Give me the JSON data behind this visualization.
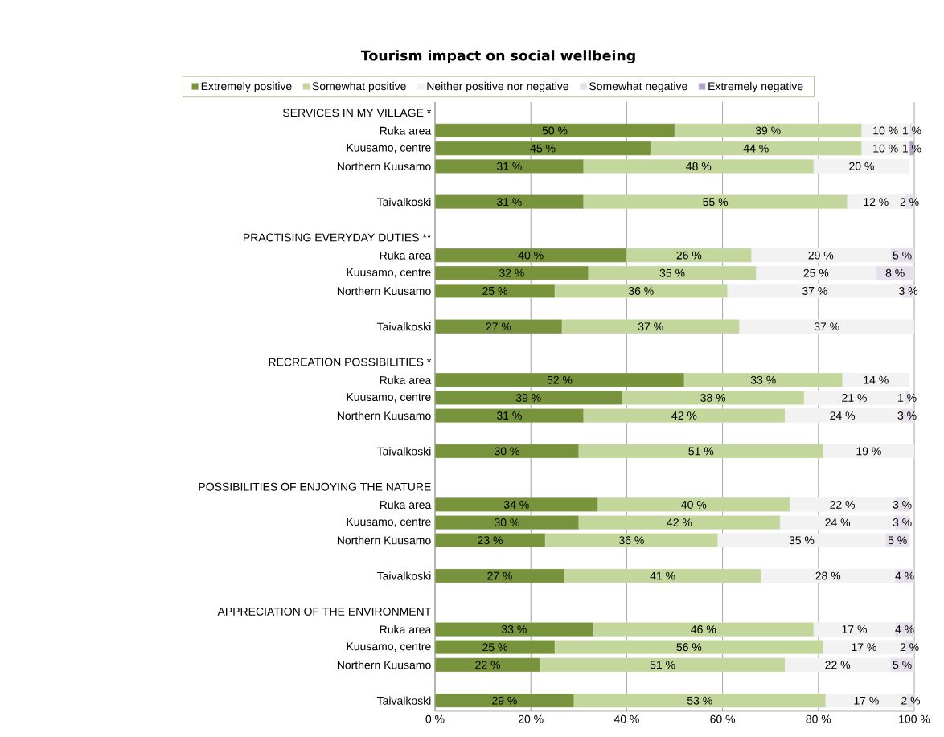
{
  "chart_data": {
    "type": "bar",
    "orientation": "horizontal",
    "stacked": true,
    "title": "Tourism impact on social wellbeing",
    "categories": [
      "SERVICES IN MY VILLAGE *",
      "Ruka area",
      "Kuusamo, centre",
      "Northern Kuusamo",
      null,
      "Taivalkoski",
      null,
      "PRACTISING EVERYDAY DUTIES **",
      "Ruka area",
      "Kuusamo, centre",
      "Northern Kuusamo",
      null,
      "Taivalkoski",
      null,
      "RECREATION POSSIBILITIES *",
      "Ruka area",
      "Kuusamo, centre",
      "Northern Kuusamo",
      null,
      "Taivalkoski",
      null,
      "POSSIBILITIES OF ENJOYING THE NATURE",
      "Ruka area",
      "Kuusamo, centre",
      "Northern Kuusamo",
      null,
      "Taivalkoski",
      null,
      "APPRECIATION OF THE ENVIRONMENT",
      "Ruka area",
      "Kuusamo, centre",
      "Northern Kuusamo",
      null,
      "Taivalkoski"
    ],
    "series": [
      {
        "name": "Extremely positive",
        "color": "#77933c",
        "values": [
          null,
          50,
          45,
          31,
          null,
          31,
          null,
          null,
          40,
          32,
          25,
          null,
          26.5,
          null,
          null,
          52,
          39,
          31,
          null,
          30,
          null,
          null,
          34,
          30,
          23,
          null,
          27,
          null,
          null,
          33,
          25,
          22,
          null,
          29
        ],
        "value_labels": [
          null,
          "50 %",
          "45 %",
          "31 %",
          null,
          "31 %",
          null,
          null,
          "40 %",
          "32 %",
          "25 %",
          null,
          "27 %",
          null,
          null,
          "52 %",
          "39 %",
          "31 %",
          null,
          "30 %",
          null,
          null,
          "34 %",
          "30 %",
          "23 %",
          null,
          "27 %",
          null,
          null,
          "33 %",
          "25 %",
          "22 %",
          null,
          "29 %"
        ]
      },
      {
        "name": "Somewhat positive",
        "color": "#c3d69b",
        "values": [
          null,
          39,
          44,
          48,
          null,
          55,
          null,
          null,
          26,
          35,
          36,
          null,
          37,
          null,
          null,
          33,
          38,
          42,
          null,
          51,
          null,
          null,
          40,
          42,
          36,
          null,
          41,
          null,
          null,
          46,
          56,
          51,
          null,
          52.5
        ],
        "value_labels": [
          null,
          "39 %",
          "44 %",
          "48 %",
          null,
          "55 %",
          null,
          null,
          "26 %",
          "35 %",
          "36 %",
          null,
          "37 %",
          null,
          null,
          "33 %",
          "38 %",
          "42 %",
          null,
          "51 %",
          null,
          null,
          "40 %",
          "42 %",
          "36 %",
          null,
          "41 %",
          null,
          null,
          "46 %",
          "56 %",
          "51 %",
          null,
          "53 %"
        ]
      },
      {
        "name": "Neither positive nor negative",
        "color": "#f2f2f2",
        "values": [
          null,
          10,
          10,
          20,
          null,
          12,
          null,
          null,
          29,
          25,
          36.5,
          null,
          36.5,
          null,
          null,
          14,
          21,
          24,
          null,
          19,
          null,
          null,
          22,
          24,
          35,
          null,
          28,
          null,
          null,
          17,
          17,
          22,
          null,
          17
        ],
        "value_labels": [
          null,
          "10 %",
          "10 %",
          "20 %",
          null,
          "12 %",
          null,
          null,
          "29 %",
          "25 %",
          "37 %",
          null,
          "37 %",
          null,
          null,
          "14 %",
          "21 %",
          "24 %",
          null,
          "19 %",
          null,
          null,
          "22 %",
          "24 %",
          "35 %",
          null,
          "28 %",
          null,
          null,
          "17 %",
          "17 %",
          "22 %",
          null,
          "17 %"
        ]
      },
      {
        "name": "Somewhat negative",
        "color": "#e6e0ec",
        "values": [
          null,
          1,
          null,
          null,
          null,
          2,
          null,
          null,
          5,
          8,
          2.5,
          null,
          null,
          null,
          null,
          null,
          1,
          3,
          null,
          null,
          null,
          null,
          3,
          3,
          5,
          null,
          4,
          null,
          null,
          4,
          2,
          5,
          null,
          1.5
        ],
        "value_labels": [
          null,
          "1 %",
          null,
          null,
          null,
          "2 %",
          null,
          null,
          "5 %",
          "8 %",
          "3 %",
          null,
          null,
          null,
          null,
          null,
          "1 %",
          "3 %",
          null,
          null,
          null,
          null,
          "3 %",
          "3 %",
          "5 %",
          null,
          "4 %",
          null,
          null,
          "4 %",
          "2 %",
          "5 %",
          null,
          "2 %"
        ]
      },
      {
        "name": "Extremely negative",
        "color": "#b3a2c7",
        "values": [
          null,
          null,
          1,
          null,
          null,
          null,
          null,
          null,
          null,
          null,
          null,
          null,
          null,
          null,
          null,
          null,
          null,
          null,
          null,
          null,
          null,
          null,
          null,
          null,
          null,
          null,
          null,
          null,
          null,
          null,
          null,
          null,
          null,
          null
        ],
        "value_labels": [
          null,
          null,
          "1 %",
          null,
          null,
          null,
          null,
          null,
          null,
          null,
          null,
          null,
          null,
          null,
          null,
          null,
          null,
          null,
          null,
          null,
          null,
          null,
          null,
          null,
          null,
          null,
          null,
          null,
          null,
          null,
          null,
          null,
          null,
          null
        ]
      }
    ],
    "xlim": [
      0,
      100
    ],
    "xticks": [
      {
        "value": 0,
        "label": "0 %"
      },
      {
        "value": 20,
        "label": "20 %"
      },
      {
        "value": 40,
        "label": "40 %"
      },
      {
        "value": 60,
        "label": "60 %"
      },
      {
        "value": 80,
        "label": "80 %"
      },
      {
        "value": 100,
        "label": "100 %"
      }
    ],
    "grid": "x",
    "legend": "top"
  }
}
